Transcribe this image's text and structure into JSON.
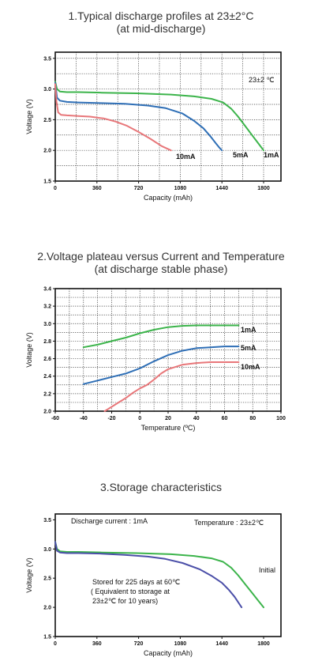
{
  "titles": {
    "c1_line1": "1.Typical discharge profiles at 23±2°C",
    "c1_line2": "(at mid-discharge)",
    "c2_line1": "2.Voltage plateau versus Current and Temperature",
    "c2_line2": "(at discharge stable phase)",
    "c3_line1": "3.Storage characteristics"
  },
  "chart_data": [
    {
      "type": "line",
      "title": "1.Typical discharge profiles at 23±2°C (at mid-discharge)",
      "xlabel": "Capacity (mAh)",
      "ylabel": "Voltage (V)",
      "xlim": [
        0,
        1950
      ],
      "ylim": [
        1.5,
        3.6
      ],
      "xticks": [
        "0",
        "360",
        "720",
        "1080",
        "1440",
        "1800"
      ],
      "yticks": [
        "1.5",
        "2.0",
        "2.5",
        "3.0",
        "3.5"
      ],
      "annotation": "23±2 ℃",
      "grid": true,
      "colors": {
        "1mA": "#3cb44b",
        "5mA": "#2f6fb6",
        "10mA": "#e8777a"
      },
      "series": [
        {
          "name": "1mA",
          "x": [
            0,
            15,
            40,
            100,
            200,
            400,
            700,
            1000,
            1200,
            1350,
            1450,
            1520,
            1580,
            1640,
            1700,
            1760,
            1800
          ],
          "y": [
            3.12,
            3.0,
            2.96,
            2.95,
            2.95,
            2.94,
            2.93,
            2.91,
            2.88,
            2.84,
            2.78,
            2.68,
            2.55,
            2.4,
            2.25,
            2.1,
            2.0
          ]
        },
        {
          "name": "5mA",
          "x": [
            0,
            15,
            40,
            100,
            200,
            400,
            600,
            800,
            950,
            1100,
            1200,
            1280,
            1340,
            1390,
            1420,
            1440
          ],
          "y": [
            3.1,
            2.86,
            2.81,
            2.79,
            2.78,
            2.77,
            2.76,
            2.73,
            2.69,
            2.6,
            2.48,
            2.36,
            2.23,
            2.11,
            2.04,
            2.0
          ]
        },
        {
          "name": "10mA",
          "x": [
            0,
            10,
            25,
            50,
            100,
            200,
            300,
            420,
            520,
            620,
            720,
            820,
            920,
            1000
          ],
          "y": [
            3.08,
            2.8,
            2.62,
            2.58,
            2.57,
            2.56,
            2.55,
            2.52,
            2.47,
            2.4,
            2.3,
            2.19,
            2.07,
            2.0
          ]
        }
      ]
    },
    {
      "type": "line",
      "title": "2.Voltage plateau versus Current and Temperature (at discharge stable phase)",
      "xlabel": "Temperature (ºC)",
      "ylabel": "Voltage (V)",
      "xlim": [
        -60,
        100
      ],
      "ylim": [
        2.0,
        3.4
      ],
      "xticks": [
        "-60",
        "-40",
        "-20",
        "0",
        "20",
        "40",
        "60",
        "80",
        "100"
      ],
      "yticks": [
        "2.0",
        "2.2",
        "2.4",
        "2.6",
        "2.8",
        "3.0",
        "3.2",
        "3.4"
      ],
      "grid": true,
      "colors": {
        "1mA": "#3cb44b",
        "5mA": "#2f6fb6",
        "10mA": "#e8777a"
      },
      "series": [
        {
          "name": "1mA",
          "x": [
            -40,
            -30,
            -20,
            -10,
            0,
            10,
            20,
            30,
            40,
            50,
            60,
            70
          ],
          "y": [
            2.73,
            2.76,
            2.8,
            2.84,
            2.89,
            2.93,
            2.96,
            2.975,
            2.98,
            2.98,
            2.98,
            2.98
          ]
        },
        {
          "name": "5mA",
          "x": [
            -40,
            -30,
            -20,
            -10,
            0,
            10,
            20,
            30,
            40,
            50,
            60,
            70
          ],
          "y": [
            2.31,
            2.35,
            2.39,
            2.43,
            2.49,
            2.57,
            2.64,
            2.69,
            2.72,
            2.73,
            2.74,
            2.74
          ]
        },
        {
          "name": "10mA",
          "x": [
            -25,
            -20,
            -15,
            -10,
            -5,
            0,
            5,
            10,
            15,
            20,
            30,
            40,
            50,
            60,
            70
          ],
          "y": [
            2.0,
            2.05,
            2.1,
            2.15,
            2.21,
            2.26,
            2.3,
            2.36,
            2.43,
            2.48,
            2.53,
            2.55,
            2.56,
            2.56,
            2.56
          ]
        }
      ]
    },
    {
      "type": "line",
      "title": "3.Storage characteristics",
      "xlabel": "Capacity (mAh)",
      "ylabel": "Voltage (V)",
      "xlim": [
        0,
        1950
      ],
      "ylim": [
        1.5,
        3.6
      ],
      "xticks": [
        "0",
        "360",
        "720",
        "1080",
        "1440",
        "1800"
      ],
      "yticks": [
        "1.5",
        "2.0",
        "2.5",
        "3.0",
        "3.5"
      ],
      "grid": false,
      "annotations": {
        "discharge": "Discharge current : 1mA",
        "temperature": "Temperature : 23±2℃",
        "storage_1": "Stored for 225 days at 60℃",
        "storage_2": "( Equivalent to storage at",
        "storage_3": "23±2℃ for 10 years)"
      },
      "colors": {
        "Initial": "#3cb44b",
        "Stored": "#4b4fa8"
      },
      "series": [
        {
          "name": "Initial",
          "x": [
            0,
            15,
            40,
            100,
            200,
            400,
            700,
            1000,
            1200,
            1350,
            1450,
            1520,
            1580,
            1640,
            1700,
            1760,
            1800
          ],
          "y": [
            3.12,
            3.0,
            2.96,
            2.95,
            2.95,
            2.94,
            2.93,
            2.91,
            2.88,
            2.84,
            2.78,
            2.68,
            2.55,
            2.4,
            2.25,
            2.1,
            2.0
          ]
        },
        {
          "name": "",
          "x": [
            0,
            15,
            40,
            100,
            200,
            400,
            600,
            800,
            950,
            1100,
            1250,
            1350,
            1440,
            1500,
            1550,
            1590,
            1610
          ],
          "y": [
            3.12,
            2.97,
            2.94,
            2.93,
            2.93,
            2.92,
            2.9,
            2.87,
            2.83,
            2.76,
            2.65,
            2.54,
            2.42,
            2.3,
            2.18,
            2.06,
            2.0
          ]
        }
      ]
    }
  ]
}
